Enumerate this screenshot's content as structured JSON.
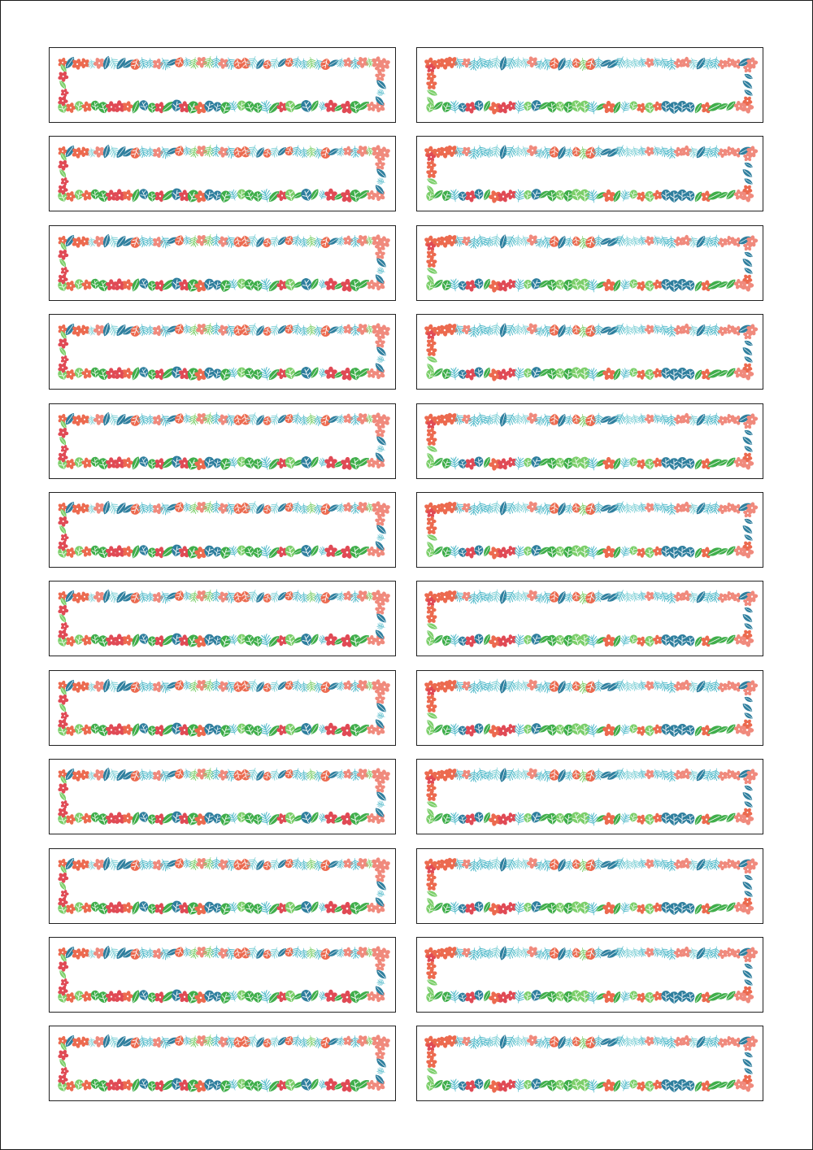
{
  "sheet": {
    "background": "#ffffff",
    "rows": 12,
    "columns": 2,
    "label_border_color": "#222222"
  },
  "label_design": {
    "theme": "tropical-border",
    "motifs": [
      "hibiscus-flower",
      "monstera-leaf",
      "palm-frond",
      "banana-leaf"
    ],
    "palette": {
      "coral": "#ec6a4f",
      "salmon": "#f08a7d",
      "teal": "#4fb9c9",
      "light_teal": "#7fd0d6",
      "dark_teal": "#2f7f9e",
      "green": "#3fae4a",
      "light_green": "#7ccf6b",
      "pink_red": "#e04a55"
    },
    "text": ""
  }
}
